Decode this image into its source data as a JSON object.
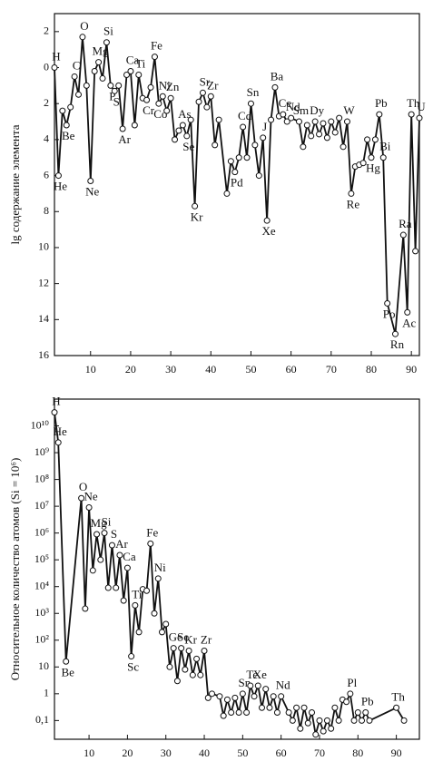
{
  "chart_data": [
    {
      "type": "line",
      "y_axis_label": "lg содержание элемента",
      "y_inverted": true,
      "xlim": [
        1,
        92
      ],
      "xticks": [
        10,
        20,
        30,
        40,
        50,
        60,
        70,
        80,
        90
      ],
      "ylim": [
        -3,
        16
      ],
      "yticks": [
        {
          "value": -2,
          "label": "2"
        },
        0,
        2,
        4,
        6,
        8,
        10,
        12,
        14,
        16
      ],
      "color": "#111",
      "x": [
        1,
        2,
        3,
        4,
        5,
        6,
        7,
        8,
        9,
        10,
        11,
        12,
        13,
        14,
        15,
        16,
        17,
        18,
        19,
        20,
        21,
        22,
        23,
        24,
        25,
        26,
        27,
        28,
        29,
        30,
        31,
        32,
        33,
        34,
        35,
        36,
        37,
        38,
        39,
        40,
        41,
        42,
        44,
        45,
        46,
        47,
        48,
        49,
        50,
        51,
        52,
        53,
        54,
        55,
        56,
        57,
        58,
        59,
        60,
        62,
        63,
        64,
        65,
        66,
        67,
        68,
        69,
        70,
        71,
        72,
        73,
        74,
        75,
        76,
        77,
        78,
        79,
        80,
        81,
        82,
        83,
        84,
        86,
        88,
        89,
        90,
        91,
        92
      ],
      "values": [
        0,
        6,
        2.4,
        3.2,
        2.2,
        0.5,
        1.5,
        -1.7,
        1.0,
        6.3,
        0.2,
        -0.3,
        0.6,
        -1.4,
        1.0,
        1.3,
        1.0,
        3.4,
        0.4,
        0.2,
        3.2,
        0.4,
        1.7,
        1.8,
        1.1,
        -0.6,
        2.0,
        1.6,
        2.4,
        1.7,
        4.0,
        3.5,
        3.2,
        3.8,
        2.9,
        7.7,
        1.9,
        1.4,
        2.2,
        1.6,
        4.3,
        2.9,
        7.0,
        5.2,
        5.8,
        5.0,
        3.3,
        5.0,
        2.0,
        4.3,
        6.0,
        3.9,
        8.5,
        2.9,
        1.1,
        2.7,
        2.6,
        3.0,
        2.8,
        3.0,
        4.4,
        3.2,
        3.8,
        3.0,
        3.7,
        3.1,
        3.9,
        3.0,
        3.6,
        2.8,
        4.4,
        3.0,
        7.0,
        5.5,
        5.4,
        5.3,
        4.0,
        5.0,
        4.0,
        2.6,
        5.0,
        13.1,
        14.8,
        9.3,
        13.6,
        2.6,
        10.2,
        2.8
      ],
      "labels": [
        "H",
        "He",
        null,
        "Be",
        null,
        "C",
        null,
        "O",
        null,
        "Ne",
        null,
        "Mg",
        null,
        "Si",
        "P",
        "S",
        null,
        "Ar",
        null,
        "Ca",
        null,
        "Ti",
        null,
        "Cr",
        null,
        "Fe",
        "Co",
        "Ni",
        null,
        "Zn",
        null,
        null,
        "As",
        "Se",
        null,
        "Kr",
        null,
        "Sr",
        null,
        "Zr",
        null,
        null,
        null,
        null,
        "Pd",
        null,
        "Cd",
        null,
        "Sn",
        null,
        null,
        "J",
        "Xe",
        null,
        "Ba",
        null,
        "Ce",
        null,
        "Nd",
        "Sm",
        null,
        null,
        null,
        "Dy",
        null,
        null,
        null,
        null,
        null,
        null,
        null,
        "W",
        "Re",
        null,
        null,
        null,
        null,
        "Hg",
        null,
        "Pb",
        "Bi",
        "Po",
        "Rn",
        "Ra",
        "Ac",
        "Th",
        null,
        "U"
      ]
    },
    {
      "type": "line",
      "y_axis_label": "Относительное количество атомов (Si = 10⁶)",
      "log_scale": true,
      "xlim": [
        1,
        96
      ],
      "xticks": [
        10,
        20,
        30,
        40,
        50,
        60,
        70,
        80,
        90
      ],
      "ylim": [
        0.02,
        100000000000.0
      ],
      "yticks": [
        {
          "value": 0.1,
          "label": "0,1"
        },
        1,
        10,
        {
          "value": 100,
          "label": "10²"
        },
        {
          "value": 1000,
          "label": "10³"
        },
        {
          "value": 10000,
          "label": "10⁴"
        },
        {
          "value": 100000,
          "label": "10⁵"
        },
        {
          "value": 1000000,
          "label": "10⁶"
        },
        {
          "value": 10000000,
          "label": "10⁷"
        },
        {
          "value": 100000000,
          "label": "10⁸"
        },
        {
          "value": 1000000000,
          "label": "10⁹"
        },
        {
          "value": 10000000000,
          "label": "10¹⁰"
        }
      ],
      "color": "#111",
      "x": [
        1,
        2,
        4,
        8,
        9,
        10,
        11,
        12,
        13,
        14,
        15,
        16,
        17,
        18,
        19,
        20,
        21,
        22,
        23,
        24,
        25,
        26,
        27,
        28,
        29,
        30,
        31,
        32,
        33,
        34,
        35,
        36,
        37,
        38,
        39,
        40,
        41,
        42,
        44,
        45,
        46,
        47,
        48,
        49,
        50,
        51,
        52,
        53,
        54,
        55,
        56,
        57,
        58,
        59,
        60,
        62,
        63,
        64,
        65,
        66,
        67,
        68,
        69,
        70,
        71,
        72,
        73,
        74,
        75,
        76,
        77,
        78,
        79,
        80,
        81,
        82,
        83,
        90,
        92
      ],
      "values": [
        32000000000.0,
        2400000000.0,
        16,
        20000000.0,
        1500,
        9000000.0,
        40000.0,
        900000.0,
        100000.0,
        1000000.0,
        9000,
        350000.0,
        9000,
        150000.0,
        3000,
        50000.0,
        25,
        2000,
        200,
        8000,
        7000,
        400000.0,
        1000,
        20000.0,
        200,
        400,
        10,
        50,
        3,
        50,
        8,
        40,
        5,
        20,
        5,
        40,
        0.7,
        1,
        0.8,
        0.15,
        0.6,
        0.2,
        0.7,
        0.2,
        1.0,
        0.2,
        2,
        0.8,
        2,
        0.3,
        1.5,
        0.3,
        0.8,
        0.2,
        0.8,
        0.2,
        0.1,
        0.3,
        0.05,
        0.3,
        0.08,
        0.2,
        0.03,
        0.1,
        0.04,
        0.1,
        0.05,
        0.3,
        0.1,
        0.6,
        0.5,
        1,
        0.1,
        0.2,
        0.1,
        0.2,
        0.1,
        0.3,
        0.1
      ],
      "labels": [
        "H",
        "He",
        "Be",
        "O",
        null,
        "Ne",
        null,
        "Mg",
        null,
        "Si",
        null,
        "S",
        null,
        "Ar",
        null,
        "Ca",
        "Sc",
        "Ti",
        null,
        null,
        null,
        "Fe",
        null,
        "Ni",
        null,
        null,
        null,
        "Ge",
        null,
        "Se",
        null,
        "Kr",
        null,
        null,
        null,
        "Zr",
        null,
        null,
        null,
        null,
        null,
        null,
        null,
        null,
        "Sn",
        null,
        "Te",
        null,
        "Xe",
        null,
        null,
        null,
        null,
        null,
        "Nd",
        null,
        null,
        null,
        null,
        null,
        null,
        null,
        null,
        null,
        null,
        null,
        null,
        null,
        null,
        null,
        null,
        "Pl",
        null,
        null,
        null,
        "Pb",
        null,
        "Th",
        null
      ]
    }
  ]
}
